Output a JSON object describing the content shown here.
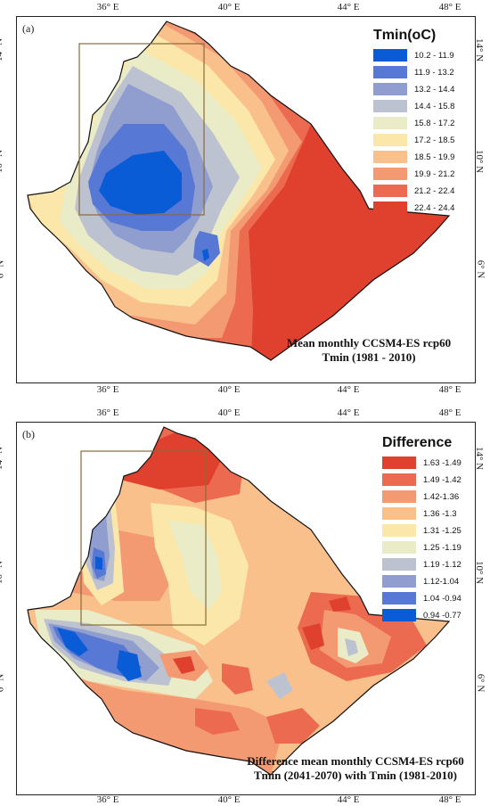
{
  "panel_a": {
    "label": "(a)",
    "legend_title": "Tmin(oC)",
    "legend": [
      {
        "label": "10.2 - 11.9",
        "color": "#0a5bd6"
      },
      {
        "label": "11.9 - 13.2",
        "color": "#5778d4"
      },
      {
        "label": "13.2 - 14.4",
        "color": "#8f9dcf"
      },
      {
        "label": "14.4 - 15.8",
        "color": "#bcc2cf"
      },
      {
        "label": "15.8 - 17.2",
        "color": "#e9ecc6"
      },
      {
        "label": "17.2 - 18.5",
        "color": "#fbe7a9"
      },
      {
        "label": "18.5 - 19.9",
        "color": "#f9c08c"
      },
      {
        "label": "19.9 - 21.2",
        "color": "#f49a73"
      },
      {
        "label": "21.2 - 22.4",
        "color": "#ec6a4f"
      },
      {
        "label": "22.4 - 24.4",
        "color": "#e0412f"
      }
    ],
    "caption_line1": "Mean monthly CCSM4-ES rcp60",
    "caption_line2": "Tmin (1981 - 2010)"
  },
  "panel_b": {
    "label": "(b)",
    "legend_title": "Difference",
    "legend": [
      {
        "label": "1.63 -1.49",
        "color": "#e0412f"
      },
      {
        "label": "1.49 -1.42",
        "color": "#ec6a4f"
      },
      {
        "label": "1.42-1.36",
        "color": "#f49a73"
      },
      {
        "label": "1.36 -1.3",
        "color": "#f9c08c"
      },
      {
        "label": "1.31 -1.25",
        "color": "#fbe7a9"
      },
      {
        "label": "1.25 -1.19",
        "color": "#e9ecc6"
      },
      {
        "label": "1.19 -1.12",
        "color": "#bcc2cf"
      },
      {
        "label": "1.12-1.04",
        "color": "#8f9dcf"
      },
      {
        "label": "1.04 -0.94",
        "color": "#5778d4"
      },
      {
        "label": "0.94 -0.77",
        "color": "#0a5bd6"
      }
    ],
    "caption_line1": "Difference mean monthly CCSM4-ES rcp60",
    "caption_line2": "Tmin (2041-2070) with Tmin (1981-2010)"
  },
  "axes": {
    "lon_ticks": [
      "36° E",
      "40° E",
      "44° E",
      "48° E"
    ],
    "lat_ticks": [
      "14° N",
      "10° N",
      "6° N"
    ]
  }
}
